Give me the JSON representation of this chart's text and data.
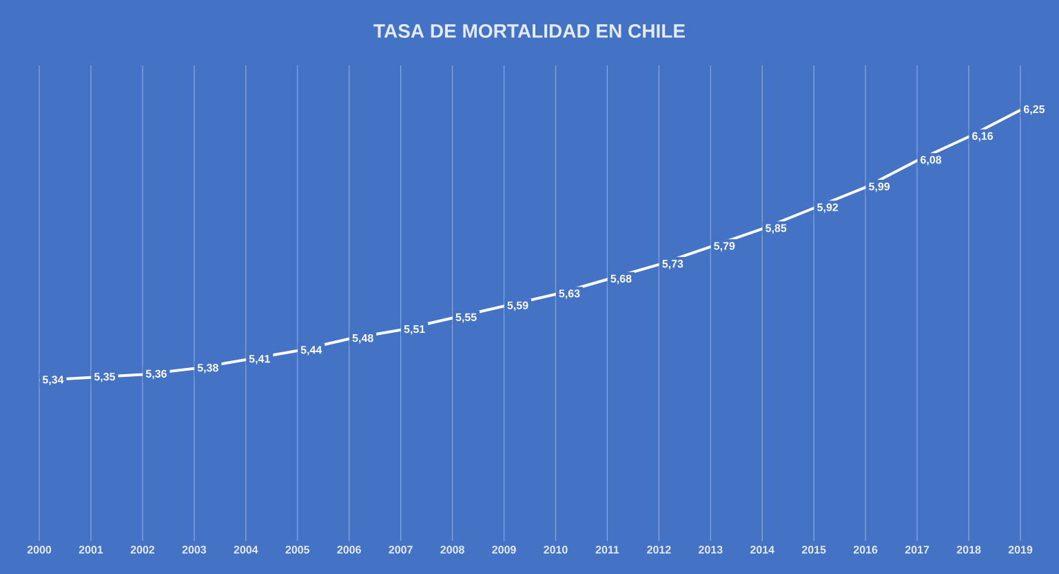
{
  "chart_data": {
    "type": "line",
    "title": "TASA DE MORTALIDAD EN CHILE",
    "categories": [
      "2000",
      "2001",
      "2002",
      "2003",
      "2004",
      "2005",
      "2006",
      "2007",
      "2008",
      "2009",
      "2010",
      "2011",
      "2012",
      "2013",
      "2014",
      "2015",
      "2016",
      "2017",
      "2018",
      "2019"
    ],
    "values": [
      5.34,
      5.35,
      5.36,
      5.38,
      5.41,
      5.44,
      5.48,
      5.51,
      5.55,
      5.59,
      5.63,
      5.68,
      5.73,
      5.79,
      5.85,
      5.92,
      5.99,
      6.08,
      6.16,
      6.25
    ],
    "value_labels": [
      "5,34",
      "5,35",
      "5,36",
      "5,38",
      "5,41",
      "5,44",
      "5,48",
      "5,51",
      "5,55",
      "5,59",
      "5,63",
      "5,68",
      "5,73",
      "5,79",
      "5,85",
      "5,92",
      "5,99",
      "6,08",
      "6,16",
      "6,25"
    ],
    "color": "#ffffff",
    "ylim": [
      4.8,
      6.4
    ],
    "grid": "x",
    "tick_labels": "x"
  }
}
